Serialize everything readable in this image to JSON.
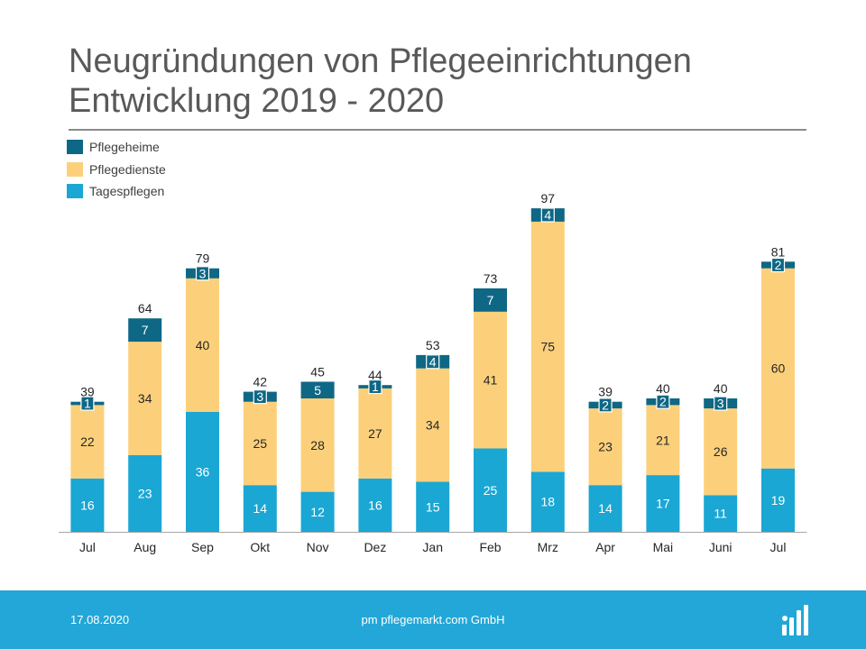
{
  "title": {
    "line1": "Neugründungen von Pflegeeinrichtungen",
    "line2": "Entwicklung 2019 - 2020"
  },
  "legend": [
    {
      "label": "Pflegeheime",
      "color": "#0e6785"
    },
    {
      "label": "Pflegedienste",
      "color": "#fcd07a"
    },
    {
      "label": "Tagespflegen",
      "color": "#1aa7d4"
    }
  ],
  "chart_data": {
    "type": "bar",
    "stacked": true,
    "categories": [
      "Jul",
      "Aug",
      "Sep",
      "Okt",
      "Nov",
      "Dez",
      "Jan",
      "Feb",
      "Mrz",
      "Apr",
      "Mai",
      "Juni",
      "Jul"
    ],
    "series": [
      {
        "name": "Tagespflegen",
        "color": "#1aa7d4",
        "values": [
          16,
          23,
          36,
          14,
          12,
          16,
          15,
          25,
          18,
          14,
          17,
          11,
          19
        ]
      },
      {
        "name": "Pflegedienste",
        "color": "#fcd07a",
        "values": [
          22,
          34,
          40,
          25,
          28,
          27,
          34,
          41,
          75,
          23,
          21,
          26,
          60
        ]
      },
      {
        "name": "Pflegeheime",
        "color": "#0e6785",
        "values": [
          1,
          7,
          3,
          3,
          5,
          1,
          4,
          7,
          4,
          2,
          2,
          3,
          2
        ]
      }
    ],
    "totals": [
      39,
      64,
      79,
      42,
      45,
      44,
      53,
      73,
      97,
      39,
      40,
      40,
      81
    ],
    "ylim": [
      0,
      100
    ],
    "grid": false,
    "legend_position": "top-left"
  },
  "footer": {
    "date": "17.08.2020",
    "company": "pm pflegemarkt.com GmbH",
    "background": "#22a7d8",
    "logo_icon": "bar-chart-logo-icon"
  }
}
